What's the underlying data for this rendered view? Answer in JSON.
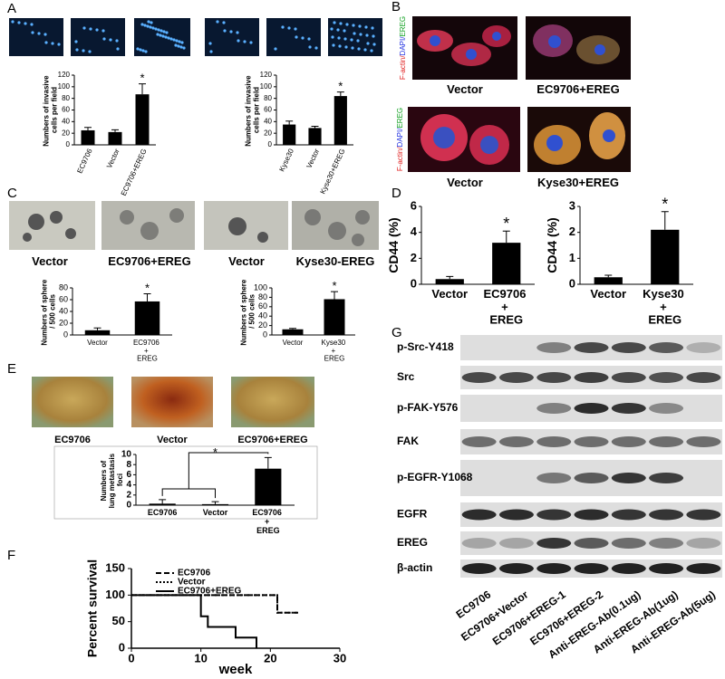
{
  "figure": {
    "panel_labels": [
      "A",
      "B",
      "C",
      "D",
      "E",
      "F",
      "G"
    ],
    "b_captions": [
      "Vector",
      "EC9706+EREG",
      "Vector",
      "Kyse30+EREG"
    ],
    "b_stain": [
      "F-actin/",
      "DAPI/",
      "EREG"
    ],
    "c_captions": [
      "Vector",
      "EC9706+EREG",
      "Vector",
      "Kyse30-EREG"
    ],
    "e_captions": [
      "EC9706",
      "Vector",
      "EC9706+EREG"
    ],
    "blot_rows": [
      "p-Src-Y418",
      "Src",
      "p-FAK-Y576",
      "FAK",
      "p-EGFR-Y1068",
      "EGFR",
      "EREG",
      "β-actin"
    ],
    "blot_lanes": [
      "EC9706",
      "EC9706+Vector",
      "EC9706+EREG-1",
      "EC9706+EREG-2",
      "Anti-EREG-Ab(0.1ug)",
      "Anti-EREG-Ab(1ug)",
      "Anti-EREG-Ab(5ug)"
    ]
  },
  "chart_data": [
    {
      "type": "bar",
      "y_label": "Numbers of invasive cells per field",
      "categories": [
        "EC9706",
        "Vector",
        "EC9706+EREG"
      ],
      "values": [
        25,
        22,
        87
      ],
      "errors": [
        5,
        4,
        18
      ],
      "color": "#000000",
      "ylim": [
        0,
        120
      ],
      "yticks": [
        0,
        20,
        40,
        60,
        80,
        100,
        120
      ],
      "annotation": "*"
    },
    {
      "type": "bar",
      "y_label": "Numbers of invasive cells per field",
      "categories": [
        "Kyse30",
        "Vector",
        "Kyse30+EREG"
      ],
      "values": [
        35,
        29,
        84
      ],
      "errors": [
        6,
        3,
        7
      ],
      "color": "#000000",
      "ylim": [
        0,
        120
      ],
      "yticks": [
        0,
        20,
        40,
        60,
        80,
        100,
        120
      ],
      "annotation": "*"
    },
    {
      "type": "bar",
      "y_label": "Numbers of sphere / 500 cells",
      "categories": [
        "Vector",
        "EC9706 + EREG"
      ],
      "values": [
        8,
        57
      ],
      "errors": [
        4,
        13
      ],
      "color": "#000000",
      "ylim": [
        0,
        80
      ],
      "yticks": [
        0,
        20,
        40,
        60,
        80
      ],
      "annotation": "*"
    },
    {
      "type": "bar",
      "y_label": "Numbers of sphere / 500 cells",
      "categories": [
        "Vector",
        "Kyse30 + EREG"
      ],
      "values": [
        12,
        76
      ],
      "errors": [
        2,
        16
      ],
      "color": "#000000",
      "ylim": [
        0,
        100
      ],
      "yticks": [
        0,
        20,
        40,
        60,
        80,
        100
      ],
      "annotation": "*"
    },
    {
      "type": "bar",
      "y_label": "CD44 (%)",
      "categories": [
        "Vector",
        "EC9706 + EREG"
      ],
      "values": [
        0.4,
        3.2
      ],
      "errors": [
        0.2,
        0.9
      ],
      "color": "#000000",
      "ylim": [
        0,
        6
      ],
      "yticks": [
        0,
        2,
        4,
        6
      ],
      "annotation": "*"
    },
    {
      "type": "bar",
      "y_label": "CD44 (%)",
      "categories": [
        "Vector",
        "Kyse30 + EREG"
      ],
      "values": [
        0.27,
        2.1
      ],
      "errors": [
        0.08,
        0.7
      ],
      "color": "#000000",
      "ylim": [
        0,
        3
      ],
      "yticks": [
        0,
        1,
        2,
        3
      ],
      "annotation": "*"
    },
    {
      "type": "bar",
      "y_label": "Numbers of lung metastasis foci",
      "categories": [
        "EC9706",
        "Vector",
        "EC9706 + EREG"
      ],
      "values": [
        0.3,
        0.2,
        7.2
      ],
      "errors": [
        0.8,
        0.5,
        2.2
      ],
      "color": "#000000",
      "ylim": [
        0,
        10
      ],
      "yticks": [
        0,
        2,
        4,
        6,
        8,
        10
      ],
      "annotation": "*"
    },
    {
      "type": "step",
      "x_label": "week",
      "y_label": "Percent survival",
      "xlim": [
        0,
        30
      ],
      "xticks": [
        0,
        10,
        20,
        30
      ],
      "ylim": [
        0,
        150
      ],
      "yticks": [
        0,
        50,
        100,
        150
      ],
      "legend": "top-left",
      "series": [
        {
          "name": "EC9706",
          "color": "#000000",
          "line_style": "dashed",
          "x": [
            0,
            21,
            24
          ],
          "values": [
            100,
            67,
            67
          ]
        },
        {
          "name": "Vector",
          "color": "#000000",
          "line_style": "dotted",
          "x": [
            0,
            19,
            21,
            24
          ],
          "values": [
            100,
            100,
            67,
            67
          ]
        },
        {
          "name": "EC9706+EREG",
          "color": "#000000",
          "line_style": "solid",
          "x": [
            0,
            10,
            11,
            15,
            18
          ],
          "values": [
            100,
            60,
            40,
            20,
            0
          ]
        }
      ]
    }
  ]
}
